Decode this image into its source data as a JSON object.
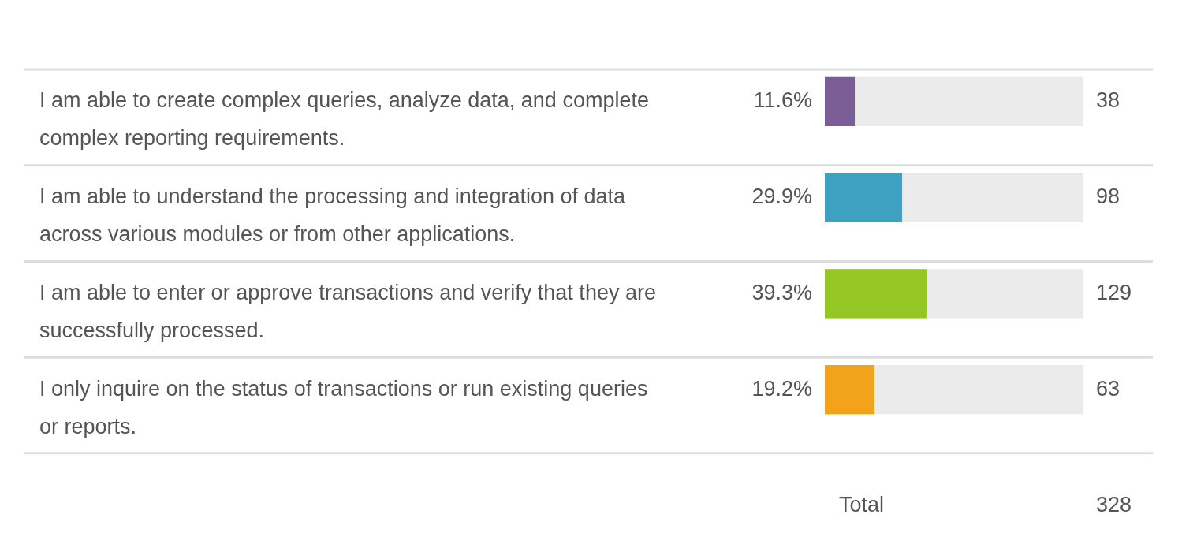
{
  "chart_data": {
    "type": "bar",
    "orientation": "horizontal",
    "categories": [
      "I am able to create complex queries, analyze data, and complete complex reporting requirements.",
      "I am able to understand the processing and integration of data across various modules or from other applications.",
      "I am able to enter or approve transactions and verify that they are successfully processed.",
      "I only inquire on the status of transactions or run existing queries or reports."
    ],
    "values": [
      11.6,
      29.9,
      39.3,
      19.2
    ],
    "colors": [
      "#7b5e96",
      "#3ea1c1",
      "#94c723",
      "#f3a31b"
    ],
    "value_labels": [
      "11.6%",
      "29.9%",
      "39.3%",
      "19.2%"
    ],
    "annotations": [
      "38",
      "98",
      "129",
      "63",
      "Total",
      "328"
    ],
    "xlim": [
      0,
      100
    ],
    "grid": "y",
    "tick_labels": "y",
    "legend": false
  }
}
